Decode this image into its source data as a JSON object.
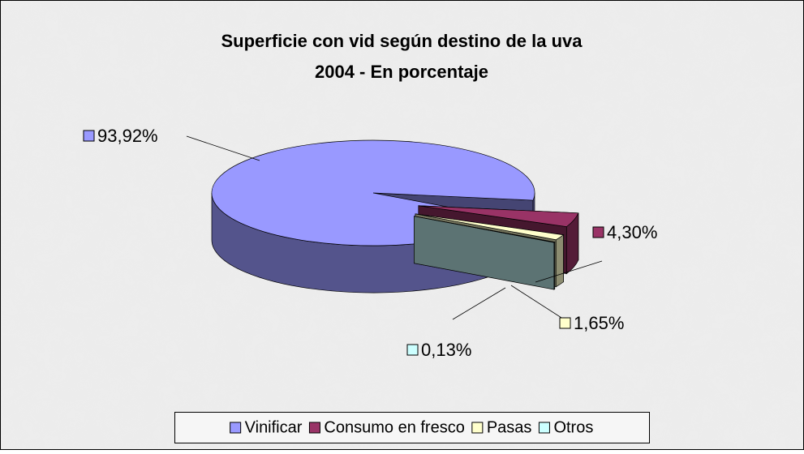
{
  "chart_data": {
    "type": "pie",
    "title": "Superficie con vid según destino de la uva",
    "subtitle": "2004 - En porcentaje",
    "categories": [
      "Vinificar",
      "Consumo en fresco",
      "Pasas",
      "Otros"
    ],
    "values": [
      93.92,
      4.3,
      1.65,
      0.13
    ],
    "value_labels": [
      "93,92%",
      "4,30%",
      "1,65%",
      "0,13%"
    ],
    "colors": [
      "#9999ff",
      "#993366",
      "#ffffcc",
      "#ccffff"
    ],
    "legend": "bottom"
  }
}
